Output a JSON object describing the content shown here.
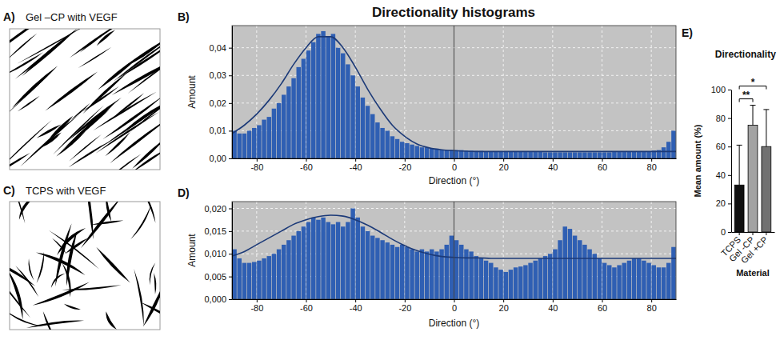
{
  "title": "Directionality histograms",
  "images": [
    {
      "panel": "A)",
      "title": "Gel –CP with VEGF"
    },
    {
      "panel": "C)",
      "title": "TCPS with VEGF"
    }
  ],
  "chart_data": [
    {
      "type": "histogram",
      "panel": "B)",
      "x_label": "Direction (°)",
      "y_label": "Amount",
      "bins": [
        -90,
        -88,
        -86,
        -84,
        -82,
        -80,
        -78,
        -76,
        -74,
        -72,
        -70,
        -68,
        -66,
        -64,
        -62,
        -60,
        -58,
        -56,
        -54,
        -52,
        -50,
        -48,
        -46,
        -44,
        -42,
        -40,
        -38,
        -36,
        -34,
        -32,
        -30,
        -28,
        -26,
        -24,
        -22,
        -20,
        -18,
        -16,
        -14,
        -12,
        -10,
        -8,
        -6,
        -4,
        -2,
        0,
        2,
        4,
        6,
        8,
        10,
        12,
        14,
        16,
        18,
        20,
        22,
        24,
        26,
        28,
        30,
        32,
        34,
        36,
        38,
        40,
        42,
        44,
        46,
        48,
        50,
        52,
        54,
        56,
        58,
        60,
        62,
        64,
        66,
        68,
        70,
        72,
        74,
        76,
        78,
        80,
        82,
        84,
        86,
        88,
        90
      ],
      "series": [
        {
          "type": "bar",
          "color": "#2f5fb3",
          "values": [
            0.01,
            0.009,
            0.009,
            0.01,
            0.011,
            0.012,
            0.014,
            0.015,
            0.018,
            0.02,
            0.023,
            0.026,
            0.029,
            0.033,
            0.036,
            0.039,
            0.042,
            0.045,
            0.046,
            0.044,
            0.045,
            0.04,
            0.038,
            0.034,
            0.03,
            0.026,
            0.022,
            0.019,
            0.016,
            0.013,
            0.011,
            0.01,
            0.008,
            0.007,
            0.006,
            0.0055,
            0.005,
            0.0045,
            0.004,
            0.004,
            0.0035,
            0.0035,
            0.0032,
            0.003,
            0.003,
            0.003,
            0.003,
            0.0028,
            0.0028,
            0.0027,
            0.0027,
            0.0026,
            0.0026,
            0.0025,
            0.0025,
            0.0025,
            0.0024,
            0.0024,
            0.0024,
            0.0023,
            0.0023,
            0.0023,
            0.0023,
            0.0022,
            0.0022,
            0.0022,
            0.0022,
            0.0022,
            0.0022,
            0.0022,
            0.0022,
            0.0022,
            0.0022,
            0.0022,
            0.0022,
            0.0022,
            0.0022,
            0.0023,
            0.0023,
            0.0023,
            0.0024,
            0.0024,
            0.0025,
            0.0025,
            0.0026,
            0.0028,
            0.003,
            0.004,
            0.006,
            0.01
          ]
        },
        {
          "type": "line",
          "color": "#1c3a78",
          "x": [
            -90,
            -85,
            -80,
            -75,
            -70,
            -65,
            -60,
            -55,
            -50,
            -45,
            -40,
            -35,
            -30,
            -25,
            -20,
            -15,
            -10,
            -5,
            0,
            5,
            10,
            15,
            20,
            25,
            30,
            35,
            40,
            45,
            50,
            55,
            60,
            65,
            70,
            75,
            80,
            85,
            90
          ],
          "values": [
            0.009,
            0.012,
            0.016,
            0.021,
            0.027,
            0.034,
            0.04,
            0.044,
            0.044,
            0.04,
            0.033,
            0.025,
            0.018,
            0.012,
            0.008,
            0.0052,
            0.0038,
            0.0031,
            0.0028,
            0.0026,
            0.0025,
            0.0025,
            0.0025,
            0.0025,
            0.0025,
            0.0025,
            0.0025,
            0.0025,
            0.0025,
            0.0025,
            0.0025,
            0.0025,
            0.0025,
            0.0025,
            0.0025,
            0.0025,
            0.0025
          ]
        }
      ],
      "vline": 0,
      "xlim": [
        -90,
        90
      ],
      "xticks": [
        -80,
        -60,
        -40,
        -20,
        0,
        20,
        40,
        60,
        80
      ],
      "ylim": [
        0,
        0.048
      ],
      "yticks": [
        {
          "value": 0,
          "label": "0,00"
        },
        {
          "value": 0.01,
          "label": "0,01"
        },
        {
          "value": 0.02,
          "label": "0,02"
        },
        {
          "value": 0.03,
          "label": "0,03"
        },
        {
          "value": 0.04,
          "label": "0,04"
        }
      ],
      "grid": true
    },
    {
      "type": "histogram",
      "panel": "D)",
      "x_label": "Direction (°)",
      "y_label": "Amount",
      "bins": [
        -90,
        -88,
        -86,
        -84,
        -82,
        -80,
        -78,
        -76,
        -74,
        -72,
        -70,
        -68,
        -66,
        -64,
        -62,
        -60,
        -58,
        -56,
        -54,
        -52,
        -50,
        -48,
        -46,
        -44,
        -42,
        -40,
        -38,
        -36,
        -34,
        -32,
        -30,
        -28,
        -26,
        -24,
        -22,
        -20,
        -18,
        -16,
        -14,
        -12,
        -10,
        -8,
        -6,
        -4,
        -2,
        0,
        2,
        4,
        6,
        8,
        10,
        12,
        14,
        16,
        18,
        20,
        22,
        24,
        26,
        28,
        30,
        32,
        34,
        36,
        38,
        40,
        42,
        44,
        46,
        48,
        50,
        52,
        54,
        56,
        58,
        60,
        62,
        64,
        66,
        68,
        70,
        72,
        74,
        76,
        78,
        80,
        82,
        84,
        86,
        88,
        90
      ],
      "series": [
        {
          "type": "bar",
          "color": "#2f5fb3",
          "values": [
            0.011,
            0.009,
            0.008,
            0.008,
            0.0082,
            0.0085,
            0.009,
            0.0095,
            0.01,
            0.011,
            0.012,
            0.013,
            0.014,
            0.015,
            0.016,
            0.017,
            0.018,
            0.0175,
            0.018,
            0.017,
            0.0165,
            0.017,
            0.016,
            0.017,
            0.02,
            0.018,
            0.016,
            0.015,
            0.014,
            0.0135,
            0.013,
            0.0125,
            0.012,
            0.0115,
            0.012,
            0.0115,
            0.011,
            0.0105,
            0.011,
            0.0105,
            0.011,
            0.0105,
            0.011,
            0.012,
            0.014,
            0.013,
            0.012,
            0.011,
            0.0105,
            0.0095,
            0.009,
            0.0085,
            0.008,
            0.007,
            0.0065,
            0.006,
            0.0065,
            0.007,
            0.0072,
            0.0075,
            0.008,
            0.0085,
            0.009,
            0.0095,
            0.01,
            0.011,
            0.013,
            0.016,
            0.0155,
            0.014,
            0.013,
            0.012,
            0.011,
            0.01,
            0.009,
            0.008,
            0.0075,
            0.007,
            0.0075,
            0.008,
            0.0085,
            0.009,
            0.009,
            0.0085,
            0.008,
            0.0075,
            0.007,
            0.007,
            0.008,
            0.0115
          ]
        },
        {
          "type": "line",
          "color": "#1c3a78",
          "x": [
            -90,
            -85,
            -80,
            -75,
            -70,
            -65,
            -60,
            -55,
            -50,
            -45,
            -40,
            -35,
            -30,
            -25,
            -20,
            -15,
            -10,
            -5,
            0,
            5,
            10,
            15,
            20,
            25,
            30,
            35,
            40,
            45,
            50,
            55,
            60,
            65,
            70,
            75,
            80,
            85,
            90
          ],
          "values": [
            0.0095,
            0.0105,
            0.012,
            0.0135,
            0.015,
            0.0165,
            0.0175,
            0.0182,
            0.0185,
            0.0183,
            0.0175,
            0.0163,
            0.0148,
            0.0132,
            0.0118,
            0.0107,
            0.0099,
            0.0094,
            0.0092,
            0.0091,
            0.0091,
            0.009,
            0.009,
            0.009,
            0.009,
            0.009,
            0.009,
            0.009,
            0.009,
            0.009,
            0.009,
            0.009,
            0.009,
            0.009,
            0.009,
            0.009,
            0.009
          ]
        }
      ],
      "vline": 0,
      "xlim": [
        -90,
        90
      ],
      "xticks": [
        -80,
        -60,
        -40,
        -20,
        0,
        20,
        40,
        60,
        80
      ],
      "ylim": [
        0,
        0.0215
      ],
      "yticks": [
        {
          "value": 0,
          "label": "0,000"
        },
        {
          "value": 0.005,
          "label": "0,005"
        },
        {
          "value": 0.01,
          "label": "0,010"
        },
        {
          "value": 0.015,
          "label": "0,015"
        },
        {
          "value": 0.02,
          "label": "0,020"
        }
      ],
      "grid": true
    },
    {
      "type": "bar",
      "panel": "E)",
      "title": "Directionality",
      "x_label": "Material",
      "y_label": "Mean amount (%)",
      "categories": [
        "TCPS",
        "Gel -CP",
        "Gel +CP"
      ],
      "values": [
        33,
        75,
        60
      ],
      "errors": [
        28,
        14,
        26
      ],
      "colors": [
        "#111111",
        "#a3a3a3",
        "#717171"
      ],
      "ylim": [
        0,
        100
      ],
      "yticks": [
        0,
        20,
        40,
        60,
        80,
        100
      ],
      "significance": [
        {
          "from": 0,
          "to": 1,
          "label": "**"
        },
        {
          "from": 0,
          "to": 2,
          "label": "*"
        }
      ]
    }
  ]
}
